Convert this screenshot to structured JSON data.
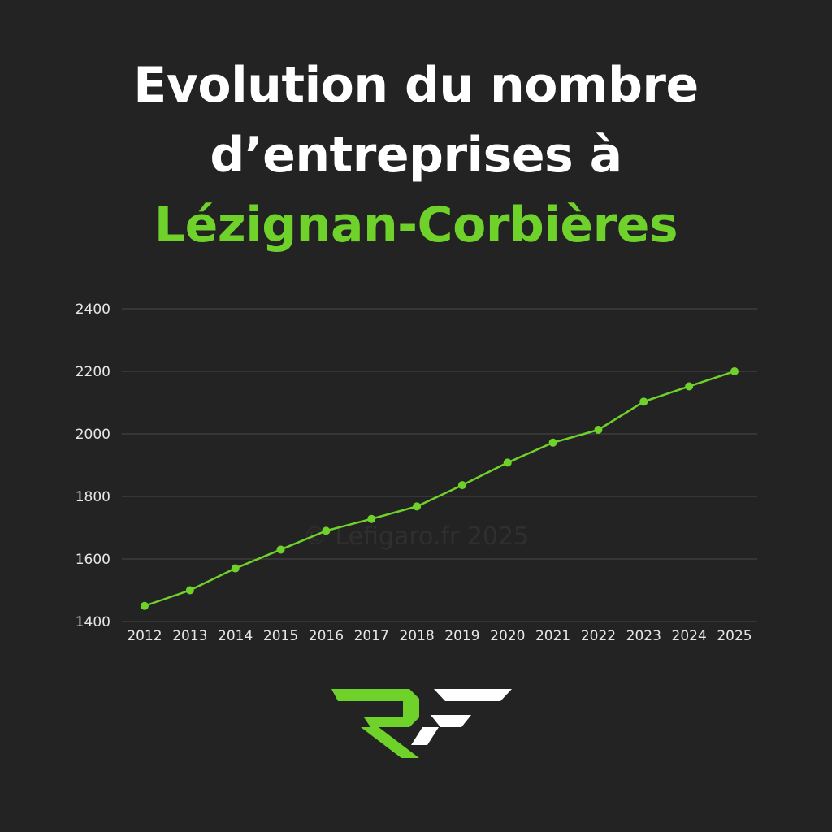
{
  "header": {
    "title_line1": "Evolution du nombre",
    "title_line2": "d’entreprises à",
    "title_line3": "Lézignan-Corbières"
  },
  "watermark": "© Lefigaro.fr 2025",
  "colors": {
    "background": "#232323",
    "accent": "#6fd22b",
    "text": "#ffffff",
    "grid": "#4a4a4a"
  },
  "logo": {
    "icon": "rf-logo-icon"
  },
  "chart_data": {
    "type": "line",
    "title": "",
    "xlabel": "",
    "ylabel": "",
    "x": [
      "2012",
      "2013",
      "2014",
      "2015",
      "2016",
      "2017",
      "2018",
      "2019",
      "2020",
      "2021",
      "2022",
      "2023",
      "2024",
      "2025"
    ],
    "series": [
      {
        "values": [
          1450,
          1500,
          1570,
          1630,
          1690,
          1728,
          1768,
          1836,
          1908,
          1972,
          2013,
          2103,
          2152,
          2200
        ],
        "color": "#6fd22b"
      }
    ],
    "yticks": [
      1400,
      1600,
      1800,
      2000,
      2200,
      2400
    ],
    "ylim": [
      1400,
      2400
    ],
    "grid": true,
    "legend": "none"
  }
}
